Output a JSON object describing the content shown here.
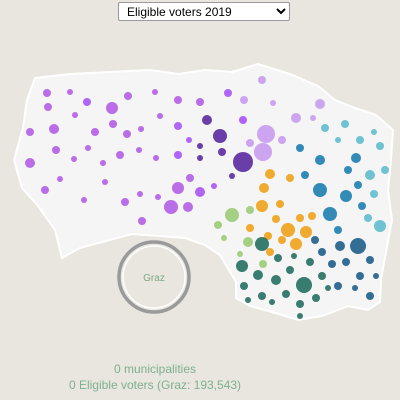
{
  "selector": {
    "selected": "Eligible voters 2019",
    "options": [
      "Eligible voters 2019"
    ]
  },
  "map": {
    "graz_label": "Graz",
    "region_fill": "#f5f5f5",
    "region_stroke": "#ffffff",
    "graz_circle_stroke": "#9a9a9a",
    "graz_label_color": "#7fa884",
    "district_colors": [
      "#b35ee6",
      "#a855f7",
      "#c89bf0",
      "#5b2aa0",
      "#f0a21a",
      "#9ccc78",
      "#1d7fb0",
      "#5fbccd",
      "#1f5f8b",
      "#256f62",
      "#3a8f5a"
    ]
  },
  "summary": {
    "count_text": "0 municipalities",
    "voters_text": "0 Eligible voters (Graz: 193,543)",
    "color": "#7fb08f"
  }
}
